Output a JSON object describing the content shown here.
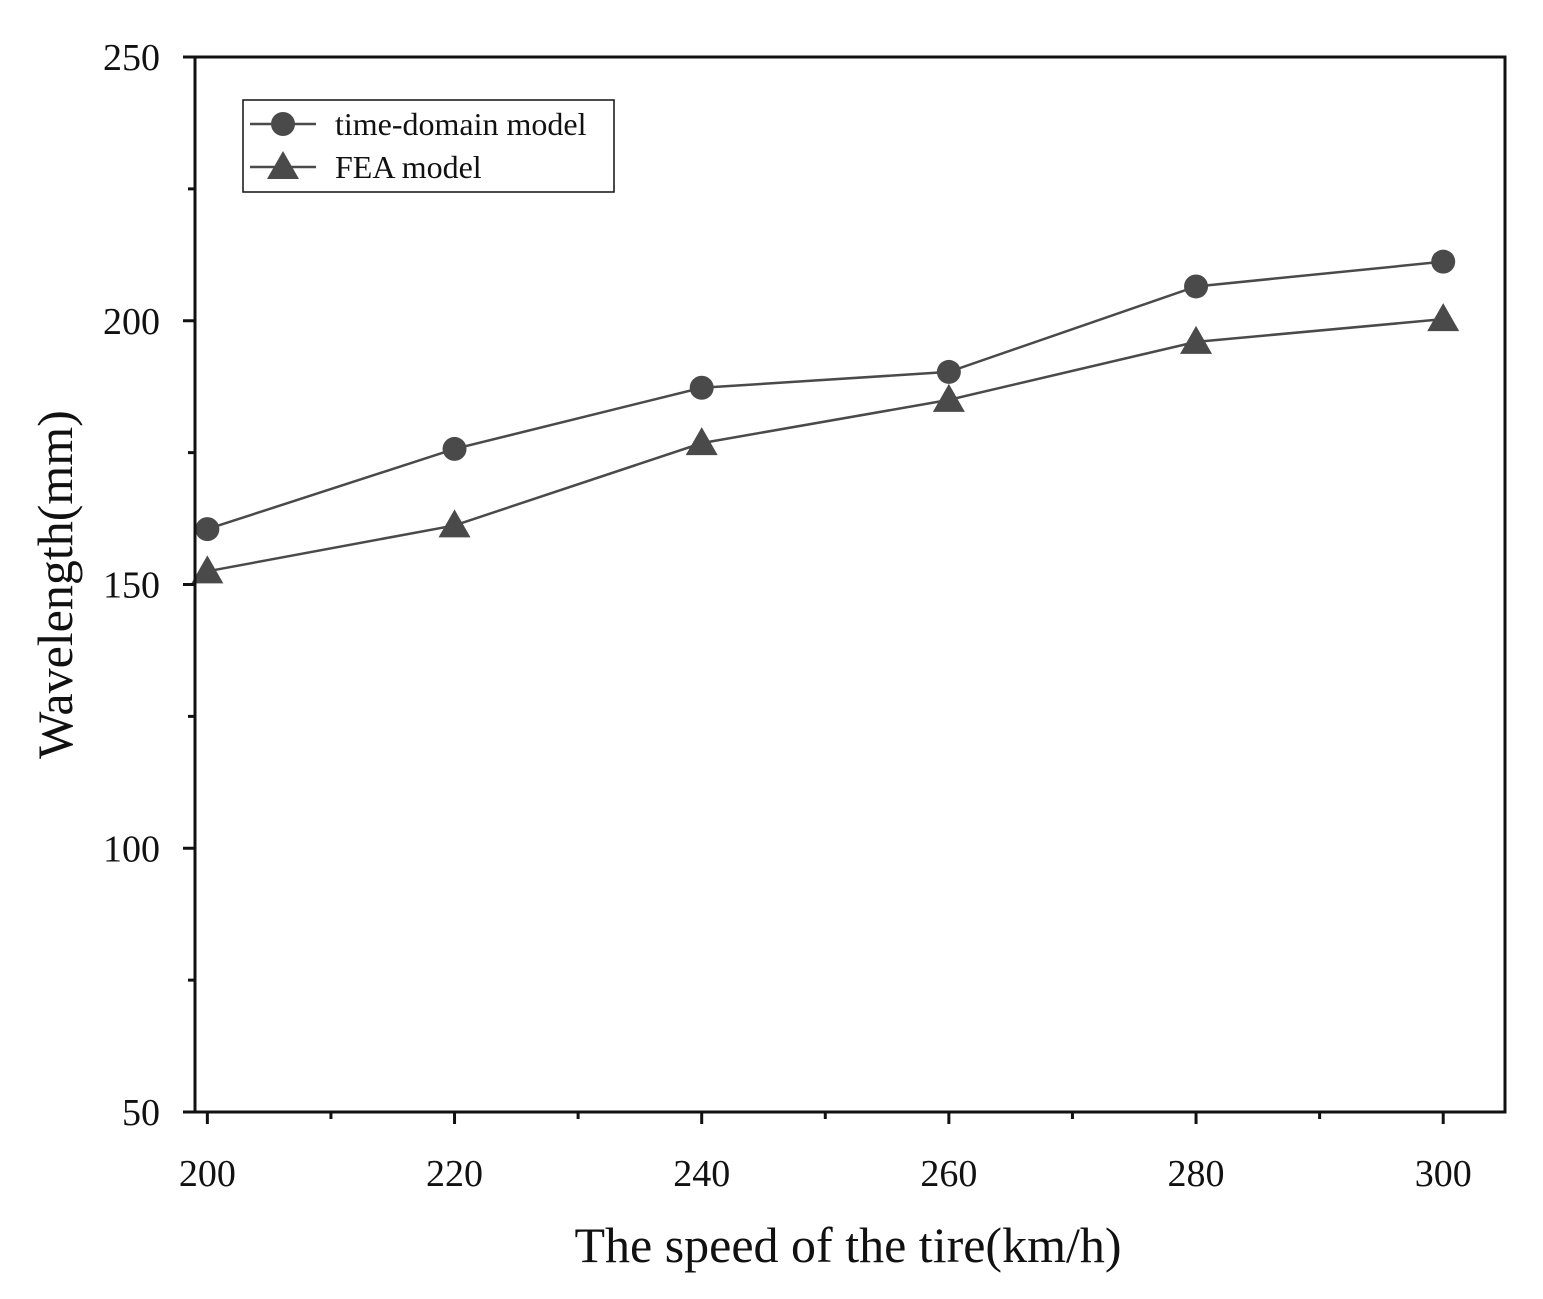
{
  "chart_data": {
    "type": "line",
    "title": "",
    "xlabel": "The speed of the tire(km/h)",
    "ylabel": "Wavelength(mm)",
    "xlim": [
      199,
      305
    ],
    "ylim": [
      50,
      250
    ],
    "x": [
      200,
      220,
      240,
      260,
      280,
      300
    ],
    "xticks": [
      200,
      220,
      240,
      260,
      280,
      300
    ],
    "xminor": [
      210,
      230,
      250,
      270,
      290
    ],
    "yticks": [
      50,
      100,
      150,
      200,
      250
    ],
    "yminor": [
      75,
      125,
      175,
      225
    ],
    "grid": false,
    "legend_position": "top-left",
    "line_color": "#4a4a4a",
    "series": [
      {
        "name": "time-domain model",
        "marker": "circle",
        "values": [
          160.5,
          175.7,
          187.3,
          190.3,
          206.5,
          211.2
        ]
      },
      {
        "name": "FEA model",
        "marker": "triangle",
        "values": [
          152.5,
          161.2,
          176.8,
          185.0,
          196.0,
          200.3
        ]
      }
    ]
  }
}
